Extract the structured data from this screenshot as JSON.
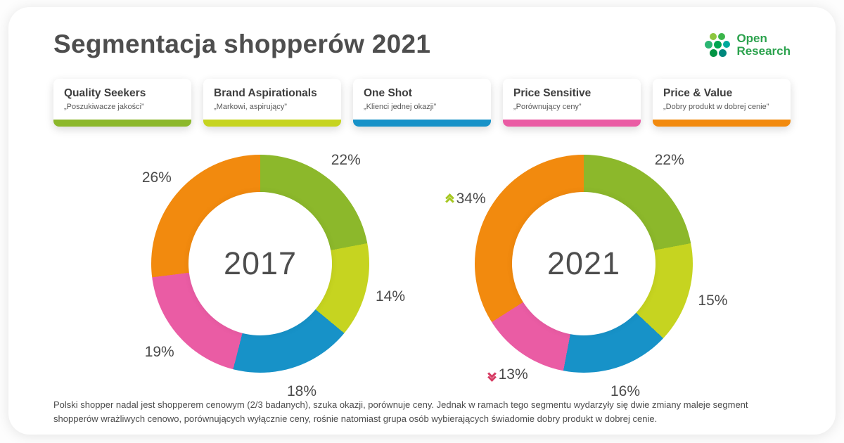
{
  "header": {
    "title": "Segmentacja shopperów 2021"
  },
  "logo": {
    "line1": "Open",
    "line2": "Research",
    "text_color": "#2ba24d",
    "dot_colors": [
      "#8dc63f",
      "#3bb54a",
      "#2bb673",
      "#00a651",
      "#00a99d",
      "#009444",
      "#00877c"
    ]
  },
  "segments": [
    {
      "name": "Quality Seekers",
      "subtitle": "„Poszukiwacze jakości”",
      "color": "#8cb82b"
    },
    {
      "name": "Brand Aspirationals",
      "subtitle": "„Markowi, aspirujący”",
      "color": "#c6d420"
    },
    {
      "name": "One Shot",
      "subtitle": "„Klienci jednej okazji”",
      "color": "#1792c8"
    },
    {
      "name": "Price Sensitive",
      "subtitle": "„Porównujący ceny”",
      "color": "#ea5ca4"
    },
    {
      "name": "Price & Value",
      "subtitle": "„Dobry produkt w dobrej cenie”",
      "color": "#f28a0e"
    }
  ],
  "trend_colors": {
    "up": "#a6c721",
    "down": "#d63b63"
  },
  "chart_data": [
    {
      "type": "pie",
      "title": "2017",
      "categories": [
        "Quality Seekers",
        "Brand Aspirationals",
        "One Shot",
        "Price Sensitive",
        "Price & Value"
      ],
      "values": [
        22,
        14,
        18,
        19,
        26
      ],
      "labels": [
        "22%",
        "14%",
        "18%",
        "19%",
        "26%"
      ],
      "slice_color_refs": [
        0,
        1,
        2,
        3,
        4
      ],
      "trends": [
        null,
        null,
        null,
        null,
        null
      ],
      "legend_position": "top",
      "donut": true
    },
    {
      "type": "pie",
      "title": "2021",
      "categories": [
        "Quality Seekers",
        "Brand Aspirationals",
        "One Shot",
        "Price Sensitive",
        "Price & Value"
      ],
      "values": [
        22,
        15,
        16,
        13,
        34
      ],
      "labels": [
        "22%",
        "15%",
        "16%",
        "13%",
        "34%"
      ],
      "slice_color_refs": [
        0,
        1,
        2,
        3,
        4
      ],
      "trends": [
        null,
        null,
        null,
        "down",
        "up"
      ],
      "legend_position": "top",
      "donut": true
    }
  ],
  "footer": {
    "text": "Polski shopper nadal jest shopperem cenowym (2/3 badanych), szuka okazji, porównuje ceny. Jednak w ramach tego segmentu wydarzyły się dwie zmiany maleje segment shopperów wrażliwych cenowo, porównujących wyłącznie ceny, rośnie natomiast grupa osób wybierających świadomie dobry produkt w dobrej cenie."
  }
}
